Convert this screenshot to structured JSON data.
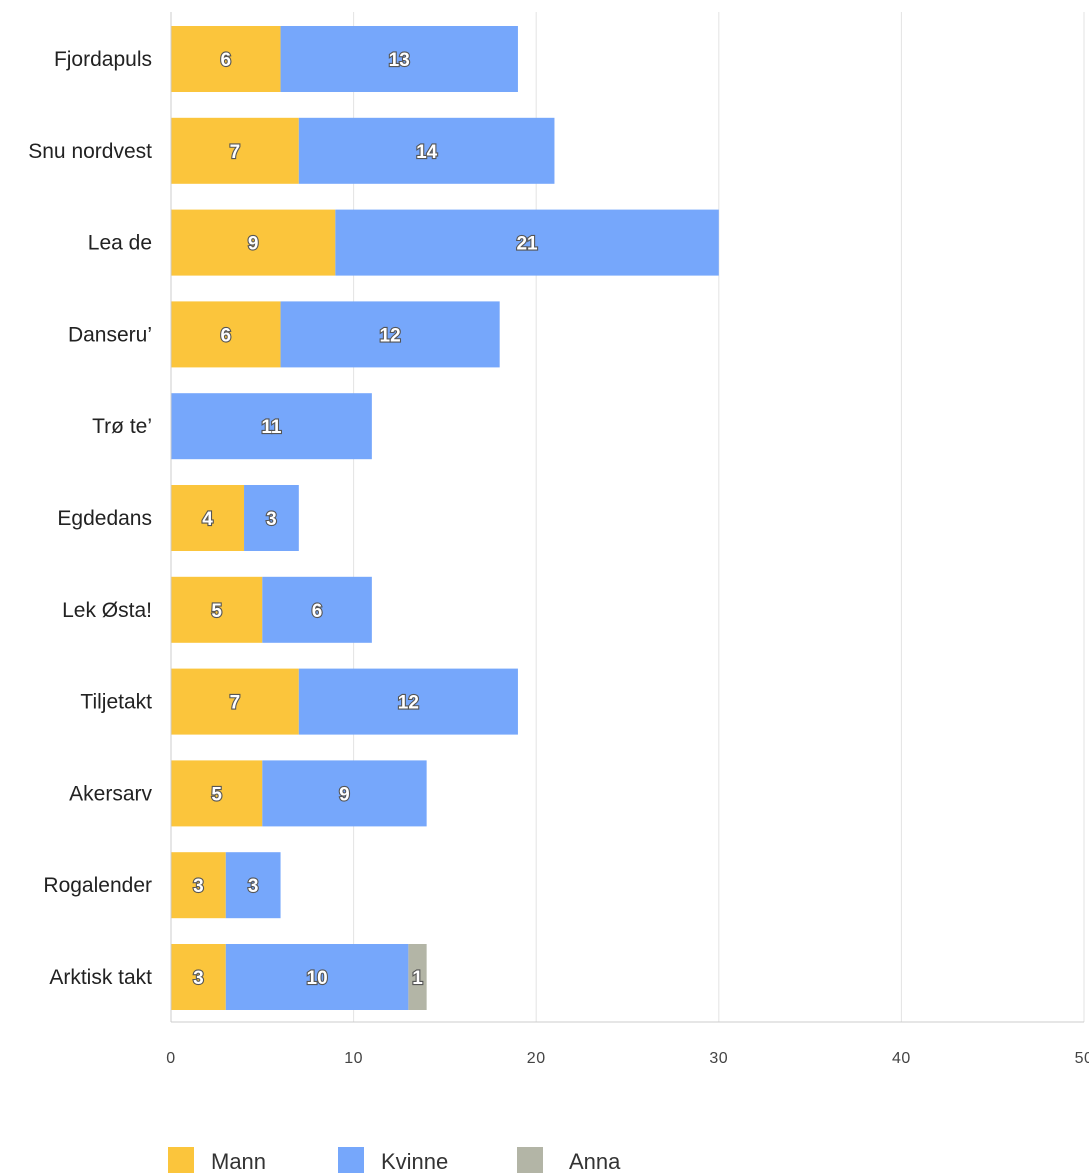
{
  "chart_data": {
    "type": "bar",
    "orientation": "horizontal",
    "stacked": true,
    "title": "",
    "xlabel": "",
    "ylabel": "",
    "xlim": [
      0,
      50
    ],
    "x_ticks": [
      0,
      10,
      20,
      30,
      40,
      50
    ],
    "grid": true,
    "legend_position": "bottom-left",
    "categories": [
      "Fjordapuls",
      "Snu nordvest",
      "Lea de",
      "Danseru’",
      "Trø te’",
      "Egdedans",
      "Lek Østa!",
      "Tiljetakt",
      "Akersarv",
      "Rogalender",
      "Arktisk takt"
    ],
    "series": [
      {
        "name": "Mann",
        "color": "#fbc53c",
        "values": [
          6,
          7,
          9,
          6,
          0,
          4,
          5,
          7,
          5,
          3,
          3
        ]
      },
      {
        "name": "Kvinne",
        "color": "#76a7fb",
        "values": [
          13,
          14,
          21,
          12,
          11,
          3,
          6,
          12,
          9,
          3,
          10
        ]
      },
      {
        "name": "Anna",
        "color": "#b3b5a6",
        "values": [
          0,
          0,
          0,
          0,
          0,
          0,
          0,
          0,
          0,
          0,
          1
        ]
      }
    ],
    "data_labels": true
  }
}
